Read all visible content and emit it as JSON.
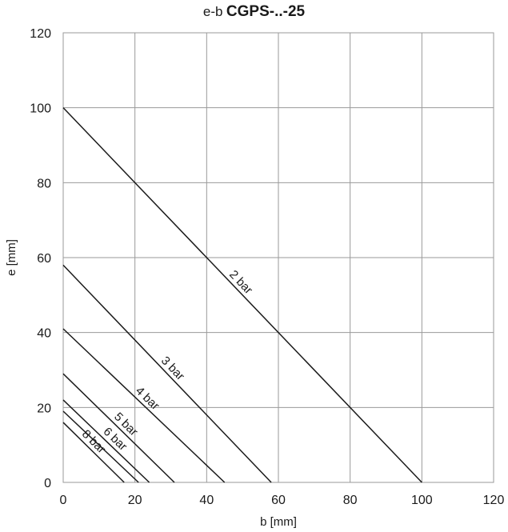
{
  "chart_data": {
    "type": "line",
    "title_prefix": "e-b",
    "title": "CGPS-..-25",
    "xlabel": "b [mm]",
    "ylabel": "e [mm]",
    "xlim": [
      0,
      120
    ],
    "ylim": [
      0,
      120
    ],
    "xticks": [
      0,
      20,
      40,
      60,
      80,
      100,
      120
    ],
    "yticks": [
      0,
      20,
      40,
      60,
      80,
      100,
      120
    ],
    "grid": true,
    "line_color": "#1a1a1a",
    "grid_color": "#9a9a9a",
    "series": [
      {
        "name": "2 bar",
        "x": [
          0,
          100
        ],
        "y": [
          100,
          0
        ],
        "label_at": 48
      },
      {
        "name": "3 bar",
        "x": [
          0,
          58
        ],
        "y": [
          58,
          0
        ],
        "label_at": 29
      },
      {
        "name": "4 bar",
        "x": [
          0,
          45
        ],
        "y": [
          41,
          0
        ],
        "label_at": 22
      },
      {
        "name": "5 bar",
        "x": [
          0,
          31
        ],
        "y": [
          29,
          0
        ],
        "label_at": 16
      },
      {
        "name": "6 bar",
        "x": [
          0,
          24
        ],
        "y": [
          22,
          0
        ],
        "label_at": 13
      },
      {
        "name": "",
        "x": [
          0,
          21
        ],
        "y": [
          19,
          0
        ]
      },
      {
        "name": "8 bar",
        "x": [
          0,
          17
        ],
        "y": [
          16,
          0
        ],
        "label_at": 7
      }
    ]
  }
}
